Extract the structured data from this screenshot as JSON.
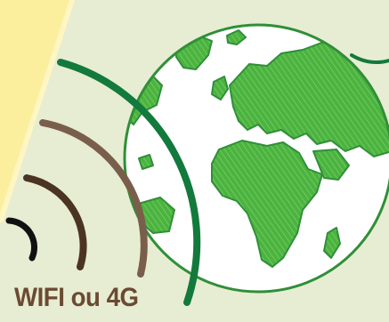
{
  "label": {
    "text": "WIFI ou 4G"
  },
  "colors": {
    "background": "#e7edd2",
    "yellow_panel": "#fbef9e",
    "arc_black": "#111111",
    "arc_dark_brown": "#4b3422",
    "arc_brown": "#7a5e4c",
    "arc_green": "#127a3c",
    "globe_ocean": "#ffffff",
    "globe_land": "#4bb33f",
    "globe_outline": "#2f8f38",
    "label_text": "#6b4a34"
  },
  "icons": [
    "globe-icon",
    "wifi-signal-icon"
  ]
}
